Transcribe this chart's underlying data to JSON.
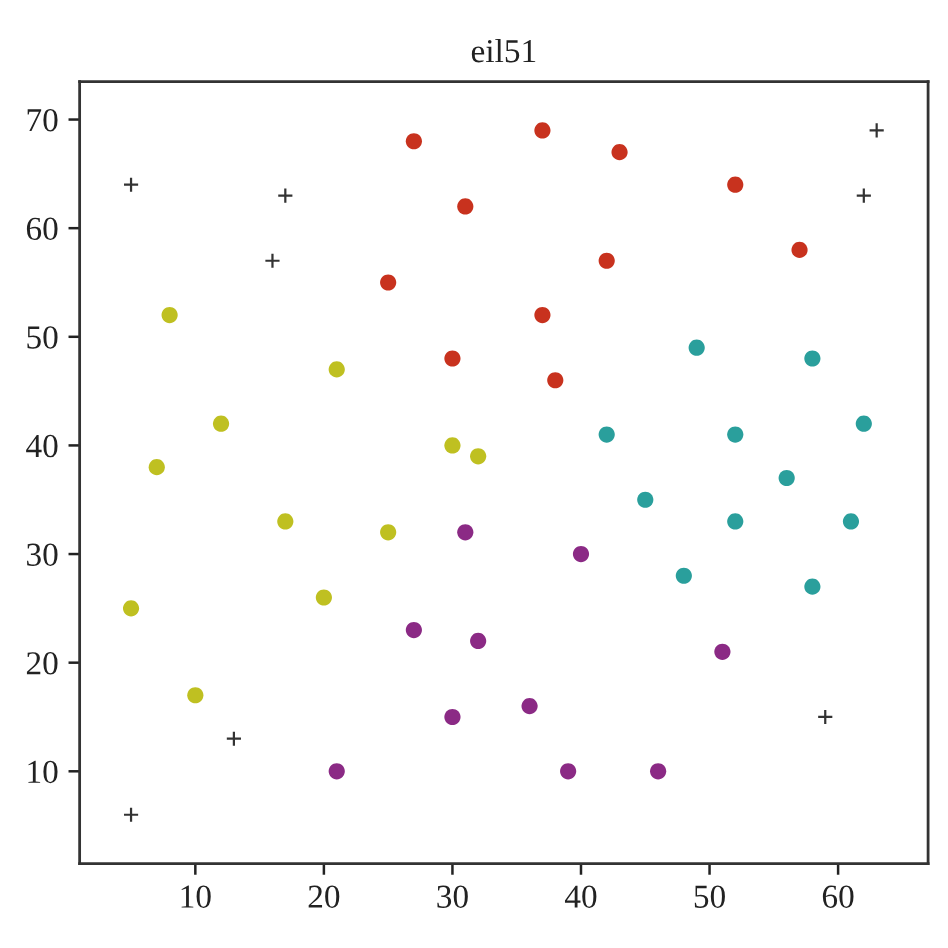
{
  "chart_data": {
    "type": "scatter",
    "title": "eil51",
    "xlim": [
      1,
      67
    ],
    "xticks": [
      10,
      20,
      30,
      40,
      50,
      60
    ],
    "ylim": [
      1.5,
      73.5
    ],
    "yticks": [
      10,
      20,
      30,
      40,
      50,
      60,
      70
    ],
    "grid": false,
    "series": [
      {
        "color": "#c8321e",
        "marker": "circle",
        "x": [
          37,
          52,
          31,
          57,
          42,
          27,
          30,
          43,
          37,
          38,
          25
        ],
        "values": [
          52,
          64,
          62,
          58,
          57,
          68,
          48,
          67,
          69,
          46,
          55
        ]
      },
      {
        "color": "#bfc021",
        "marker": "circle",
        "x": [
          20,
          21,
          5,
          12,
          17,
          8,
          7,
          32,
          25,
          30,
          10
        ],
        "values": [
          26,
          47,
          25,
          42,
          33,
          52,
          38,
          39,
          32,
          40,
          17
        ]
      },
      {
        "color": "#8b2a85",
        "marker": "circle",
        "x": [
          40,
          51,
          31,
          36,
          27,
          46,
          32,
          21,
          30,
          39
        ],
        "values": [
          30,
          21,
          32,
          16,
          23,
          10,
          22,
          10,
          15,
          10
        ]
      },
      {
        "color": "#2a9f9c",
        "marker": "circle",
        "x": [
          49,
          52,
          42,
          52,
          62,
          58,
          58,
          61,
          45,
          48,
          56
        ],
        "values": [
          49,
          33,
          41,
          41,
          42,
          48,
          27,
          33,
          35,
          28,
          37
        ]
      },
      {
        "color": "#333333",
        "marker": "cross",
        "x": [
          17,
          13,
          62,
          63,
          16,
          59,
          5,
          5
        ],
        "values": [
          63,
          13,
          63,
          69,
          57,
          15,
          6,
          64
        ]
      }
    ]
  }
}
